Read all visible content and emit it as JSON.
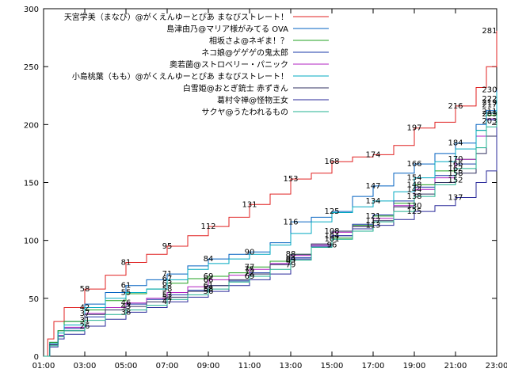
{
  "chart_data": {
    "type": "line",
    "title": "",
    "xlabel": "",
    "ylabel": "",
    "xlim": [
      1,
      23
    ],
    "ylim": [
      0,
      300
    ],
    "x_ticks": [
      {
        "hour": 1,
        "label": "01:00"
      },
      {
        "hour": 3,
        "label": "03:00"
      },
      {
        "hour": 5,
        "label": "05:00"
      },
      {
        "hour": 7,
        "label": "07:00"
      },
      {
        "hour": 9,
        "label": "09:00"
      },
      {
        "hour": 11,
        "label": "11:00"
      },
      {
        "hour": 13,
        "label": "13:00"
      },
      {
        "hour": 15,
        "label": "15:00"
      },
      {
        "hour": 17,
        "label": "17:00"
      },
      {
        "hour": 19,
        "label": "19:00"
      },
      {
        "hour": 21,
        "label": "21:00"
      },
      {
        "hour": 23,
        "label": "23:00"
      }
    ],
    "y_ticks": [
      0,
      50,
      100,
      150,
      200,
      250,
      300
    ],
    "legend_position": "top-right",
    "series": [
      {
        "name": "天宮学美（まなび）@がくえんゆーとぴあ まなびストレート！",
        "color": "#e02020",
        "x": [
          1,
          1.2,
          1.5,
          2,
          3,
          4,
          5,
          6,
          7,
          8,
          9,
          10,
          11,
          12,
          13,
          14,
          15,
          16,
          17,
          18,
          19,
          20,
          21,
          22,
          22.5,
          23
        ],
        "y": [
          0,
          15,
          30,
          42,
          58,
          70,
          81,
          88,
          95,
          104,
          112,
          120,
          131,
          140,
          153,
          158,
          168,
          172,
          174,
          182,
          197,
          202,
          216,
          232,
          250,
          281
        ]
      },
      {
        "name": "島津由乃@マリア様がみてる OVA",
        "color": "#0060c0",
        "x": [
          1,
          1.3,
          1.7,
          2,
          3,
          4,
          5,
          6,
          7,
          8,
          9,
          10,
          11,
          12,
          13,
          14,
          15,
          16,
          17,
          18,
          19,
          20,
          21,
          22,
          22.5,
          23
        ],
        "y": [
          0,
          12,
          22,
          30,
          45,
          55,
          61,
          66,
          71,
          78,
          84,
          88,
          90,
          98,
          116,
          120,
          125,
          138,
          147,
          158,
          166,
          175,
          184,
          200,
          212,
          230
        ]
      },
      {
        "name": "相坂さよ@ネギま！？",
        "color": "#20a020",
        "x": [
          1,
          1.3,
          1.7,
          2,
          3,
          4,
          5,
          6,
          7,
          8,
          9,
          10,
          11,
          12,
          13,
          14,
          15,
          16,
          17,
          18,
          19,
          20,
          21,
          22,
          22.5,
          23
        ],
        "y": [
          0,
          12,
          22,
          30,
          40,
          48,
          54,
          58,
          63,
          67,
          69,
          72,
          77,
          82,
          88,
          95,
          102,
          113,
          121,
          132,
          148,
          160,
          170,
          195,
          208,
          222
        ]
      },
      {
        "name": "ネコ娘@ゲゲゲの鬼太郎",
        "color": "#1a3aa8",
        "x": [
          1,
          1.3,
          1.7,
          2,
          3,
          4,
          5,
          6,
          7,
          8,
          9,
          10,
          11,
          12,
          13,
          14,
          15,
          16,
          17,
          18,
          19,
          20,
          21,
          22,
          22.5,
          23
        ],
        "y": [
          0,
          10,
          18,
          24,
          34,
          40,
          45,
          49,
          53,
          57,
          61,
          65,
          72,
          80,
          85,
          94,
          104,
          114,
          122,
          134,
          146,
          156,
          166,
          190,
          204,
          219
        ]
      },
      {
        "name": "奥若菌@ストロベリー・パニック",
        "color": "#b020c0",
        "x": [
          1,
          1.3,
          1.7,
          2,
          3,
          4,
          5,
          6,
          7,
          8,
          9,
          10,
          11,
          12,
          13,
          14,
          15,
          16,
          17,
          18,
          19,
          20,
          21,
          22,
          22.5,
          23
        ],
        "y": [
          0,
          10,
          18,
          25,
          37,
          42,
          46,
          50,
          55,
          60,
          66,
          70,
          75,
          80,
          87,
          96,
          107,
          112,
          119,
          130,
          144,
          154,
          170,
          190,
          205,
          217
        ]
      },
      {
        "name": "小島桃葉（もも）@がくえんゆーとぴあ まなびストレート！",
        "color": "#00a8c0",
        "x": [
          1,
          1.3,
          1.7,
          2,
          3,
          4,
          5,
          6,
          7,
          8,
          9,
          10,
          11,
          12,
          13,
          14,
          15,
          16,
          17,
          18,
          19,
          20,
          21,
          22,
          22.5,
          23
        ],
        "y": [
          0,
          11,
          20,
          27,
          42,
          50,
          55,
          58,
          66,
          75,
          80,
          84,
          88,
          96,
          106,
          116,
          124,
          129,
          134,
          142,
          154,
          168,
          179,
          195,
          210,
          228
        ]
      },
      {
        "name": "白雪姫@おとぎ銃士 赤ずきん",
        "color": "#303060",
        "x": [
          1,
          1.3,
          1.7,
          2,
          3,
          4,
          5,
          6,
          7,
          8,
          9,
          10,
          11,
          12,
          13,
          14,
          15,
          16,
          17,
          18,
          19,
          20,
          21,
          22,
          22.5,
          23
        ],
        "y": [
          0,
          10,
          17,
          22,
          36,
          40,
          43,
          47,
          51,
          56,
          61,
          66,
          71,
          79,
          88,
          97,
          108,
          112,
          117,
          129,
          140,
          150,
          158,
          175,
          190,
          209
        ]
      },
      {
        "name": "葛村令禅@怪物王女",
        "color": "#2a2a9a",
        "x": [
          1,
          1.3,
          1.7,
          2,
          3,
          4,
          5,
          6,
          7,
          8,
          9,
          10,
          11,
          12,
          13,
          14,
          15,
          16,
          17,
          18,
          19,
          20,
          21,
          22,
          22.5,
          23
        ],
        "y": [
          0,
          8,
          15,
          19,
          26,
          32,
          38,
          42,
          47,
          51,
          56,
          61,
          66,
          71,
          84,
          95,
          104,
          110,
          113,
          118,
          125,
          130,
          137,
          150,
          160,
          203
        ]
      },
      {
        "name": "サクヤ@うたわれるもの",
        "color": "#20b090",
        "x": [
          1,
          1.3,
          1.7,
          2,
          3,
          4,
          5,
          6,
          7,
          8,
          9,
          10,
          11,
          12,
          13,
          14,
          15,
          16,
          17,
          18,
          19,
          20,
          21,
          22,
          22.5,
          23
        ],
        "y": [
          0,
          9,
          17,
          22,
          31,
          36,
          40,
          44,
          49,
          53,
          58,
          64,
          69,
          75,
          83,
          94,
          101,
          108,
          116,
          125,
          138,
          148,
          162,
          180,
          198,
          211
        ]
      }
    ],
    "data_labels": [
      {
        "x": 3,
        "y": 58,
        "text": "58"
      },
      {
        "x": 5,
        "y": 81,
        "text": "81"
      },
      {
        "x": 7,
        "y": 95,
        "text": "95"
      },
      {
        "x": 9,
        "y": 112,
        "text": "112"
      },
      {
        "x": 11,
        "y": 131,
        "text": "131"
      },
      {
        "x": 13,
        "y": 153,
        "text": "153"
      },
      {
        "x": 15,
        "y": 168,
        "text": "168"
      },
      {
        "x": 17,
        "y": 174,
        "text": "174"
      },
      {
        "x": 19,
        "y": 197,
        "text": "197"
      },
      {
        "x": 21,
        "y": 216,
        "text": "216"
      },
      {
        "x": 22.65,
        "y": 281,
        "text": "281"
      },
      {
        "x": 3,
        "y": 42,
        "text": "42"
      },
      {
        "x": 3,
        "y": 37,
        "text": "37"
      },
      {
        "x": 3,
        "y": 31,
        "text": "31"
      },
      {
        "x": 3,
        "y": 26,
        "text": "26"
      },
      {
        "x": 5,
        "y": 61,
        "text": "61"
      },
      {
        "x": 5,
        "y": 55,
        "text": "55"
      },
      {
        "x": 5,
        "y": 46,
        "text": "46"
      },
      {
        "x": 5,
        "y": 43,
        "text": "43"
      },
      {
        "x": 5,
        "y": 38,
        "text": "38"
      },
      {
        "x": 7,
        "y": 71,
        "text": "71"
      },
      {
        "x": 7,
        "y": 67,
        "text": "67"
      },
      {
        "x": 7,
        "y": 63,
        "text": "63"
      },
      {
        "x": 7,
        "y": 58,
        "text": "58"
      },
      {
        "x": 7,
        "y": 53,
        "text": "53"
      },
      {
        "x": 7,
        "y": 51,
        "text": "51"
      },
      {
        "x": 7,
        "y": 47,
        "text": "47"
      },
      {
        "x": 9,
        "y": 84,
        "text": "84"
      },
      {
        "x": 9,
        "y": 69,
        "text": "69"
      },
      {
        "x": 9,
        "y": 66,
        "text": "66"
      },
      {
        "x": 9,
        "y": 61,
        "text": "61"
      },
      {
        "x": 9,
        "y": 58,
        "text": "58"
      },
      {
        "x": 9,
        "y": 56,
        "text": "56"
      },
      {
        "x": 11,
        "y": 90,
        "text": "90"
      },
      {
        "x": 11,
        "y": 77,
        "text": "77"
      },
      {
        "x": 11,
        "y": 75,
        "text": "75"
      },
      {
        "x": 11,
        "y": 72,
        "text": "72"
      },
      {
        "x": 11,
        "y": 69,
        "text": "69"
      },
      {
        "x": 13,
        "y": 116,
        "text": "116"
      },
      {
        "x": 13,
        "y": 88,
        "text": "88"
      },
      {
        "x": 13,
        "y": 84,
        "text": "84"
      },
      {
        "x": 13,
        "y": 79,
        "text": "79"
      },
      {
        "x": 13,
        "y": 83,
        "text": "83"
      },
      {
        "x": 15,
        "y": 125,
        "text": "125"
      },
      {
        "x": 15,
        "y": 108,
        "text": "108"
      },
      {
        "x": 15,
        "y": 104,
        "text": "104"
      },
      {
        "x": 15,
        "y": 101,
        "text": "101"
      },
      {
        "x": 15,
        "y": 96,
        "text": "96"
      },
      {
        "x": 17,
        "y": 147,
        "text": "147"
      },
      {
        "x": 17,
        "y": 134,
        "text": "134"
      },
      {
        "x": 17,
        "y": 121,
        "text": "121"
      },
      {
        "x": 17,
        "y": 117,
        "text": "117"
      },
      {
        "x": 17,
        "y": 113,
        "text": "113"
      },
      {
        "x": 19,
        "y": 166,
        "text": "166"
      },
      {
        "x": 19,
        "y": 154,
        "text": "154"
      },
      {
        "x": 19,
        "y": 148,
        "text": "148"
      },
      {
        "x": 19,
        "y": 144,
        "text": "144"
      },
      {
        "x": 19,
        "y": 138,
        "text": "138"
      },
      {
        "x": 19,
        "y": 130,
        "text": "130"
      },
      {
        "x": 19,
        "y": 125,
        "text": "125"
      },
      {
        "x": 21,
        "y": 184,
        "text": "184"
      },
      {
        "x": 21,
        "y": 170,
        "text": "170"
      },
      {
        "x": 21,
        "y": 166,
        "text": "166"
      },
      {
        "x": 21,
        "y": 162,
        "text": "162"
      },
      {
        "x": 21,
        "y": 158,
        "text": "158"
      },
      {
        "x": 21,
        "y": 152,
        "text": "152"
      },
      {
        "x": 21,
        "y": 137,
        "text": "137"
      },
      {
        "x": 22.65,
        "y": 230,
        "text": "230"
      },
      {
        "x": 22.65,
        "y": 222,
        "text": "222"
      },
      {
        "x": 22.65,
        "y": 219,
        "text": "219"
      },
      {
        "x": 22.65,
        "y": 217,
        "text": "217"
      },
      {
        "x": 22.65,
        "y": 211,
        "text": "211"
      },
      {
        "x": 22.65,
        "y": 209,
        "text": "209"
      },
      {
        "x": 22.65,
        "y": 203,
        "text": "203"
      }
    ]
  }
}
